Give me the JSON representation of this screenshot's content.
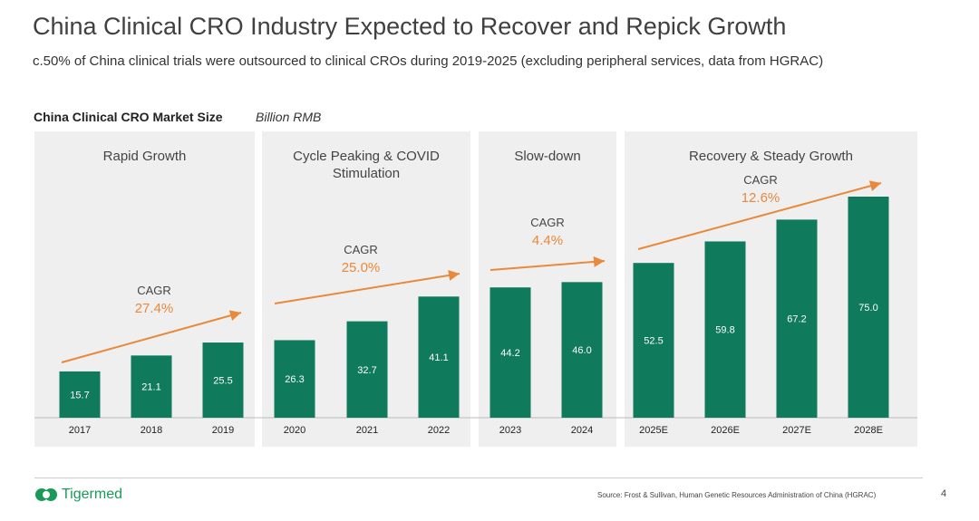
{
  "header": {
    "title": "China Clinical CRO Industry Expected to Recover and Repick Growth",
    "subtitle": "c.50% of China clinical trials were outsourced to clinical CROs during 2019-2025 (excluding peripheral services, data from HGRAC)"
  },
  "chart_data": {
    "type": "bar",
    "title": "China Clinical CRO Market Size",
    "unit": "Billion RMB",
    "categories": [
      "2017",
      "2018",
      "2019",
      "2020",
      "2021",
      "2022",
      "2023",
      "2024",
      "2025E",
      "2026E",
      "2027E",
      "2028E"
    ],
    "values": [
      15.7,
      21.1,
      25.5,
      26.3,
      32.7,
      41.1,
      44.2,
      46.0,
      52.5,
      59.8,
      67.2,
      75.0
    ],
    "ylim": [
      0,
      75
    ],
    "phases": [
      {
        "label": "Rapid Growth",
        "cagr_label": "CAGR",
        "cagr": "27.4%"
      },
      {
        "label": "Cycle Peaking & COVID Stimulation",
        "cagr_label": "CAGR",
        "cagr": "25.0%"
      },
      {
        "label": "Slow-down",
        "cagr_label": "CAGR",
        "cagr": "4.4%"
      },
      {
        "label": "Recovery & Steady Growth",
        "cagr_label": "CAGR",
        "cagr": "12.6%"
      }
    ],
    "colors": {
      "bar": "#0f7a5c",
      "cagr": "#e8893c",
      "panel": "#efefef"
    }
  },
  "footer": {
    "logo": "Tigermed",
    "source": "Source: Frost & Sullivan, Human Genetic Resources Administration of China (HGRAC)",
    "page": "4"
  }
}
